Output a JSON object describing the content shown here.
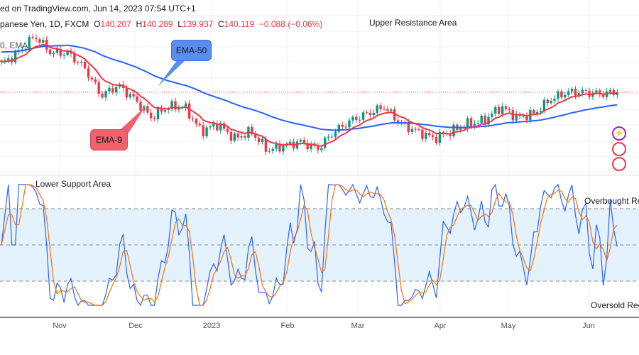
{
  "header": {
    "published": "ed on TradingView.com, Jun 14, 2023 07:54 UTC+1",
    "symbol": "panese Yen, 1D, FXCM",
    "o_label": "O",
    "o": "140.207",
    "h_label": "H",
    "h": "140.289",
    "l_label": "L",
    "l": "139.937",
    "c_label": "C",
    "c": "140.119",
    "change": "−0.088 (−0.06%)",
    "indicator": "0, EMA"
  },
  "annotations": {
    "upper": "Upper Resistance Area",
    "lower": "Lower Support Area",
    "overbought": "Overbought Re",
    "oversold": "Oversold Reg",
    "ema50": "EMA-50",
    "ema9": "EMA-9"
  },
  "colors": {
    "up": "#089981",
    "down": "#f23645",
    "ema9": "#f23645",
    "ema50": "#2962ff",
    "stochK": "#2962ff",
    "stochD": "#ff6d00",
    "band": "#e3f2fd",
    "ema50_box": "#5b8def",
    "ema9_box": "#f0616d"
  },
  "chart_data": {
    "type": "candlestick",
    "symbol": "USD/JPY",
    "timeframe": "1D",
    "xlabels": [
      "Nov",
      "Dec",
      "2023",
      "Feb",
      "Mar",
      "Apr",
      "May",
      "Jun"
    ],
    "anchor_closes": [
      145.8,
      148,
      151.5,
      148,
      148,
      145,
      139.4,
      141.5,
      138.7,
      135,
      137.2,
      137.2,
      132.2,
      133.7,
      130.8,
      132.2,
      128.4,
      129.4,
      130.1,
      128.7,
      132.2,
      134.4,
      135.8,
      137.2,
      133.7,
      132.2,
      130.8,
      132.2,
      133.7,
      134.4,
      137.2,
      135,
      135.8,
      138.7,
      140.1,
      140.1,
      139.8,
      140.1
    ],
    "last_close": 140.119,
    "indicators": [
      "EMA 9",
      "EMA 50",
      "Stochastic RSI"
    ],
    "oscillator_levels": [
      80,
      50,
      20
    ],
    "oscillator_range": [
      0,
      100
    ]
  }
}
